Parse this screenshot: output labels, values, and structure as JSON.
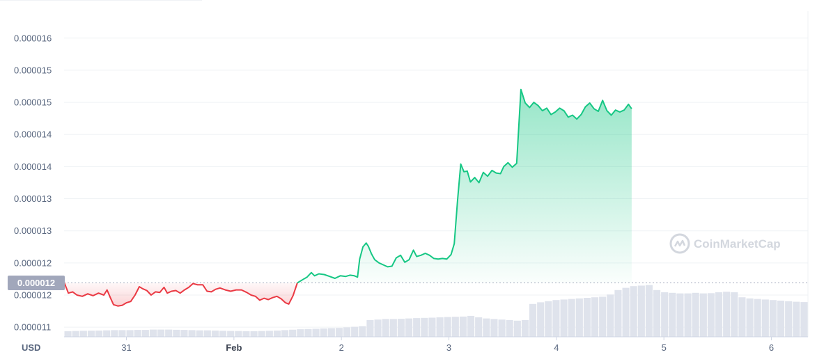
{
  "chart_data": {
    "type": "area",
    "currency_label": "USD",
    "watermark": "CoinMarketCap",
    "y_tick_labels": [
      "0.000016",
      "0.000015",
      "0.000015",
      "0.000014",
      "0.000014",
      "0.000013",
      "0.000013",
      "0.000012",
      "0.000012",
      "0.000011"
    ],
    "y_tick_values": [
      1.6e-05,
      1.55e-05,
      1.5e-05,
      1.45e-05,
      1.4e-05,
      1.35e-05,
      1.3e-05,
      1.25e-05,
      1.2e-05,
      1.15e-05
    ],
    "ylim": [
      1.135e-05,
      1.642e-05
    ],
    "x_ticks": [
      {
        "label": "31",
        "t": 0.58,
        "bold": false
      },
      {
        "label": "Feb",
        "t": 1.58,
        "bold": true
      },
      {
        "label": "2",
        "t": 2.58,
        "bold": false
      },
      {
        "label": "3",
        "t": 3.58,
        "bold": false
      },
      {
        "label": "4",
        "t": 4.58,
        "bold": false
      },
      {
        "label": "5",
        "t": 5.58,
        "bold": false
      },
      {
        "label": "6",
        "t": 6.58,
        "bold": false
      }
    ],
    "reference_price": 1.219e-05,
    "reference_label": "0.000012",
    "colors": {
      "up": "#16c784",
      "down": "#ea3943",
      "volume": "#dfe3ec",
      "grid": "#eff2f5"
    },
    "price_points": [
      [
        0.0,
        1.22e-05
      ],
      [
        0.04,
        1.203e-05
      ],
      [
        0.08,
        1.205e-05
      ],
      [
        0.12,
        1.2e-05
      ],
      [
        0.17,
        1.198e-05
      ],
      [
        0.22,
        1.202e-05
      ],
      [
        0.27,
        1.199e-05
      ],
      [
        0.32,
        1.203e-05
      ],
      [
        0.37,
        1.2e-05
      ],
      [
        0.4,
        1.208e-05
      ],
      [
        0.43,
        1.196e-05
      ],
      [
        0.46,
        1.185e-05
      ],
      [
        0.5,
        1.183e-05
      ],
      [
        0.54,
        1.184e-05
      ],
      [
        0.58,
        1.188e-05
      ],
      [
        0.62,
        1.19e-05
      ],
      [
        0.66,
        1.2e-05
      ],
      [
        0.7,
        1.213e-05
      ],
      [
        0.73,
        1.21e-05
      ],
      [
        0.77,
        1.207e-05
      ],
      [
        0.81,
        1.2e-05
      ],
      [
        0.85,
        1.205e-05
      ],
      [
        0.89,
        1.204e-05
      ],
      [
        0.93,
        1.212e-05
      ],
      [
        0.96,
        1.203e-05
      ],
      [
        1.0,
        1.206e-05
      ],
      [
        1.04,
        1.207e-05
      ],
      [
        1.08,
        1.203e-05
      ],
      [
        1.12,
        1.208e-05
      ],
      [
        1.16,
        1.212e-05
      ],
      [
        1.2,
        1.218e-05
      ],
      [
        1.24,
        1.216e-05
      ],
      [
        1.29,
        1.216e-05
      ],
      [
        1.33,
        1.206e-05
      ],
      [
        1.37,
        1.205e-05
      ],
      [
        1.41,
        1.209e-05
      ],
      [
        1.45,
        1.211e-05
      ],
      [
        1.5,
        1.208e-05
      ],
      [
        1.55,
        1.206e-05
      ],
      [
        1.6,
        1.208e-05
      ],
      [
        1.65,
        1.208e-05
      ],
      [
        1.7,
        1.204e-05
      ],
      [
        1.74,
        1.2e-05
      ],
      [
        1.78,
        1.198e-05
      ],
      [
        1.82,
        1.192e-05
      ],
      [
        1.86,
        1.195e-05
      ],
      [
        1.9,
        1.193e-05
      ],
      [
        1.94,
        1.196e-05
      ],
      [
        1.98,
        1.198e-05
      ],
      [
        2.02,
        1.194e-05
      ],
      [
        2.06,
        1.188e-05
      ],
      [
        2.09,
        1.186e-05
      ],
      [
        2.13,
        1.199e-05
      ],
      [
        2.17,
        1.219e-05
      ],
      [
        2.22,
        1.224e-05
      ],
      [
        2.26,
        1.228e-05
      ],
      [
        2.3,
        1.235e-05
      ],
      [
        2.33,
        1.23e-05
      ],
      [
        2.37,
        1.233e-05
      ],
      [
        2.42,
        1.232e-05
      ],
      [
        2.47,
        1.229e-05
      ],
      [
        2.52,
        1.226e-05
      ],
      [
        2.57,
        1.23e-05
      ],
      [
        2.62,
        1.229e-05
      ],
      [
        2.66,
        1.231e-05
      ],
      [
        2.7,
        1.23e-05
      ],
      [
        2.73,
        1.228e-05
      ],
      [
        2.75,
        1.256e-05
      ],
      [
        2.78,
        1.275e-05
      ],
      [
        2.81,
        1.281e-05
      ],
      [
        2.83,
        1.276e-05
      ],
      [
        2.86,
        1.264e-05
      ],
      [
        2.89,
        1.255e-05
      ],
      [
        2.93,
        1.25e-05
      ],
      [
        2.97,
        1.247e-05
      ],
      [
        3.01,
        1.244e-05
      ],
      [
        3.05,
        1.245e-05
      ],
      [
        3.09,
        1.258e-05
      ],
      [
        3.13,
        1.262e-05
      ],
      [
        3.17,
        1.251e-05
      ],
      [
        3.21,
        1.255e-05
      ],
      [
        3.25,
        1.27e-05
      ],
      [
        3.28,
        1.26e-05
      ],
      [
        3.32,
        1.262e-05
      ],
      [
        3.36,
        1.265e-05
      ],
      [
        3.4,
        1.262e-05
      ],
      [
        3.44,
        1.257e-05
      ],
      [
        3.48,
        1.256e-05
      ],
      [
        3.52,
        1.257e-05
      ],
      [
        3.56,
        1.256e-05
      ],
      [
        3.6,
        1.263e-05
      ],
      [
        3.63,
        1.28e-05
      ],
      [
        3.66,
        1.347e-05
      ],
      [
        3.69,
        1.404e-05
      ],
      [
        3.72,
        1.392e-05
      ],
      [
        3.75,
        1.393e-05
      ],
      [
        3.78,
        1.376e-05
      ],
      [
        3.82,
        1.383e-05
      ],
      [
        3.86,
        1.375e-05
      ],
      [
        3.9,
        1.391e-05
      ],
      [
        3.94,
        1.385e-05
      ],
      [
        3.98,
        1.394e-05
      ],
      [
        4.02,
        1.39e-05
      ],
      [
        4.06,
        1.389e-05
      ],
      [
        4.09,
        1.4e-05
      ],
      [
        4.13,
        1.406e-05
      ],
      [
        4.17,
        1.399e-05
      ],
      [
        4.21,
        1.405e-05
      ],
      [
        4.25,
        1.52e-05
      ],
      [
        4.29,
        1.499e-05
      ],
      [
        4.33,
        1.492e-05
      ],
      [
        4.37,
        1.5e-05
      ],
      [
        4.41,
        1.495e-05
      ],
      [
        4.45,
        1.487e-05
      ],
      [
        4.49,
        1.491e-05
      ],
      [
        4.53,
        1.481e-05
      ],
      [
        4.57,
        1.485e-05
      ],
      [
        4.61,
        1.491e-05
      ],
      [
        4.65,
        1.487e-05
      ],
      [
        4.69,
        1.477e-05
      ],
      [
        4.73,
        1.48e-05
      ],
      [
        4.77,
        1.474e-05
      ],
      [
        4.81,
        1.481e-05
      ],
      [
        4.85,
        1.493e-05
      ],
      [
        4.89,
        1.499e-05
      ],
      [
        4.93,
        1.49e-05
      ],
      [
        4.97,
        1.486e-05
      ],
      [
        5.01,
        1.503e-05
      ],
      [
        5.05,
        1.487e-05
      ],
      [
        5.09,
        1.48e-05
      ],
      [
        5.13,
        1.488e-05
      ],
      [
        5.17,
        1.485e-05
      ],
      [
        5.21,
        1.488e-05
      ],
      [
        5.25,
        1.497e-05
      ],
      [
        5.28,
        1.49e-05
      ]
    ],
    "volume_bars": [
      0.05,
      0.052,
      0.054,
      0.055,
      0.056,
      0.058,
      0.06,
      0.06,
      0.06,
      0.062,
      0.062,
      0.065,
      0.065,
      0.065,
      0.063,
      0.062,
      0.06,
      0.058,
      0.058,
      0.056,
      0.054,
      0.053,
      0.052,
      0.05,
      0.05,
      0.052,
      0.054,
      0.056,
      0.06,
      0.064,
      0.068,
      0.07,
      0.072,
      0.075,
      0.078,
      0.08,
      0.085,
      0.09,
      0.095,
      0.15,
      0.155,
      0.16,
      0.16,
      0.162,
      0.165,
      0.168,
      0.17,
      0.172,
      0.175,
      0.178,
      0.18,
      0.182,
      0.188,
      0.175,
      0.165,
      0.16,
      0.155,
      0.15,
      0.145,
      0.15,
      0.295,
      0.31,
      0.32,
      0.33,
      0.335,
      0.34,
      0.345,
      0.35,
      0.355,
      0.36,
      0.38,
      0.42,
      0.44,
      0.455,
      0.46,
      0.465,
      0.42,
      0.4,
      0.395,
      0.39,
      0.39,
      0.395,
      0.39,
      0.392,
      0.4,
      0.405,
      0.4,
      0.355,
      0.345,
      0.34,
      0.335,
      0.33,
      0.325,
      0.32,
      0.315,
      0.312
    ]
  }
}
